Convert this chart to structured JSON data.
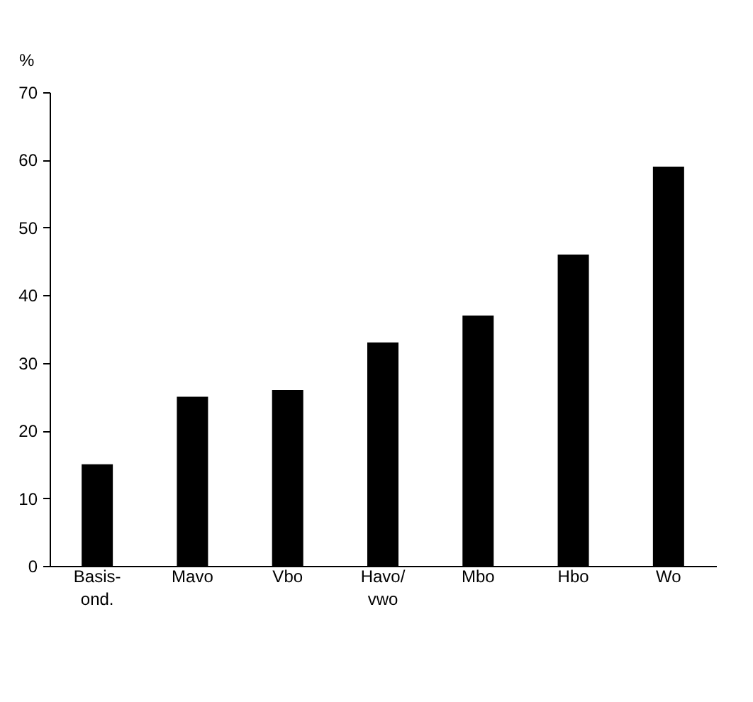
{
  "chart_data": {
    "type": "bar",
    "ylabel": "%",
    "categories": [
      "Basis-\nond.",
      "Mavo",
      "Vbo",
      "Havo/\nvwo",
      "Mbo",
      "Hbo",
      "Wo"
    ],
    "values": [
      15,
      25,
      26,
      33,
      37,
      46,
      59
    ],
    "color": "#000000",
    "ylim": [
      0,
      70
    ],
    "yticks": [
      0,
      10,
      20,
      30,
      40,
      50,
      60,
      70
    ],
    "grid": false
  }
}
